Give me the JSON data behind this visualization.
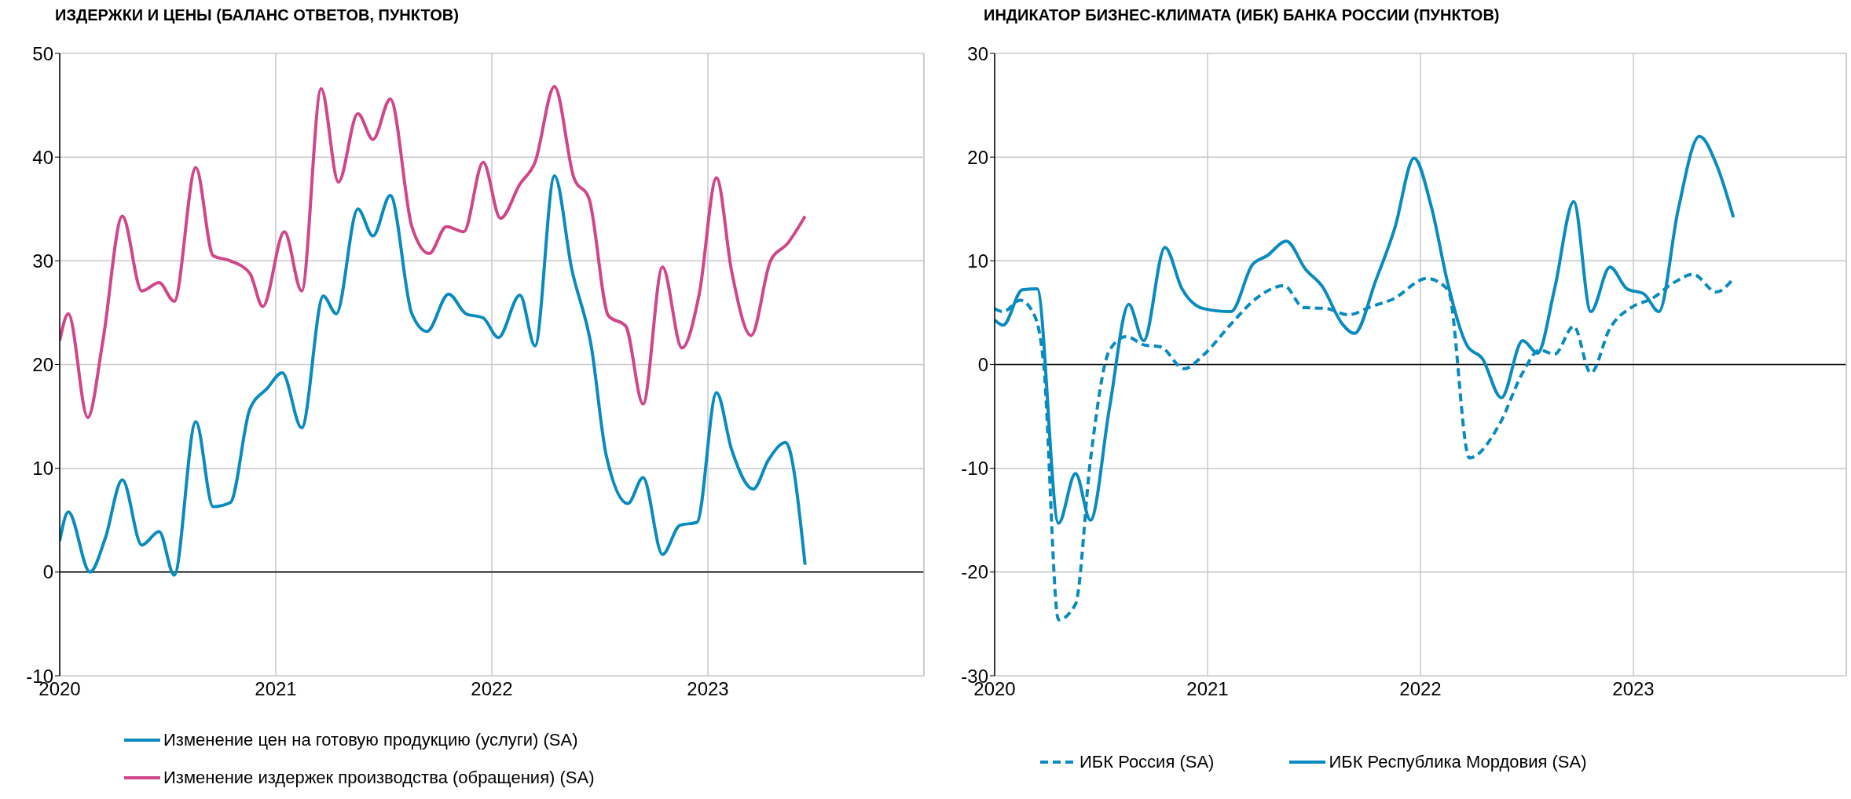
{
  "chart_data": [
    {
      "type": "line",
      "title": "ИЗДЕРЖКИ И ЦЕНЫ (БАЛАНС ОТВЕТОВ, ПУНКТОВ)",
      "xlim": [
        2020,
        2024
      ],
      "xticks": [
        2020,
        2021,
        2022,
        2023
      ],
      "ylim": [
        -10,
        50
      ],
      "yticks": [
        -10,
        0,
        10,
        20,
        30,
        40,
        50
      ],
      "grid": true,
      "legend": "bottom",
      "marker": "none",
      "series": [
        {
          "name": "Изменение цен на готовую продукцию (услуги) (SA)",
          "color": "#0a8bbf",
          "line_style": "solid",
          "x": [
            2020,
            2020.04,
            2020.14,
            2020.21,
            2020.29,
            2020.38,
            2020.46,
            2020.53,
            2020.63,
            2020.71,
            2020.79,
            2020.88,
            2020.96,
            2021.03,
            2021.12,
            2021.22,
            2021.28,
            2021.38,
            2021.45,
            2021.53,
            2021.63,
            2021.7,
            2021.8,
            2021.88,
            2021.96,
            2022.03,
            2022.13,
            2022.2,
            2022.29,
            2022.37,
            2022.46,
            2022.53,
            2022.63,
            2022.7,
            2022.79,
            2022.87,
            2022.95,
            2023.04,
            2023.11,
            2023.21,
            2023.28,
            2023.36,
            2023.45
          ],
          "values": [
            3.0,
            5.8,
            0.0,
            3.2,
            8.9,
            2.6,
            3.9,
            -0.3,
            14.5,
            6.3,
            6.7,
            15.7,
            17.7,
            19.2,
            13.9,
            26.6,
            24.9,
            35.0,
            32.4,
            36.3,
            24.9,
            23.2,
            26.8,
            24.9,
            24.5,
            22.6,
            26.7,
            21.8,
            38.2,
            29.2,
            21.8,
            11.2,
            6.6,
            9.1,
            1.7,
            4.5,
            4.8,
            17.3,
            11.8,
            8.0,
            10.8,
            12.5,
            0.7
          ]
        },
        {
          "name": "Изменение издержек производства (обращения) (SA)",
          "color": "#d0468a",
          "line_style": "solid",
          "x": [
            2020,
            2020.04,
            2020.13,
            2020.2,
            2020.29,
            2020.38,
            2020.46,
            2020.53,
            2020.63,
            2020.71,
            2020.79,
            2020.88,
            2020.94,
            2021.04,
            2021.12,
            2021.21,
            2021.29,
            2021.38,
            2021.45,
            2021.53,
            2021.63,
            2021.71,
            2021.79,
            2021.87,
            2021.96,
            2022.04,
            2022.13,
            2022.2,
            2022.29,
            2022.38,
            2022.45,
            2022.54,
            2022.62,
            2022.7,
            2022.79,
            2022.88,
            2022.96,
            2023.04,
            2023.11,
            2023.2,
            2023.29,
            2023.37,
            2023.45
          ],
          "values": [
            22.3,
            24.9,
            14.9,
            22.3,
            34.3,
            27.1,
            27.9,
            26.1,
            39.0,
            30.5,
            30.0,
            28.8,
            25.6,
            32.8,
            27.1,
            46.6,
            37.6,
            44.2,
            41.7,
            45.6,
            33.3,
            30.7,
            33.3,
            32.8,
            39.5,
            34.1,
            37.4,
            39.5,
            46.8,
            38.0,
            36.0,
            24.7,
            23.7,
            16.2,
            29.4,
            21.6,
            26.8,
            38.0,
            29.0,
            22.8,
            30.0,
            31.7,
            34.3
          ]
        }
      ]
    },
    {
      "type": "line",
      "title": "ИНДИКАТОР БИЗНЕС-КЛИМАТА (ИБК) БАНКА РОССИИ (ПУНКТОВ)",
      "xlim": [
        2020,
        2024
      ],
      "xticks": [
        2020,
        2021,
        2022,
        2023
      ],
      "ylim": [
        -30,
        30
      ],
      "yticks": [
        -30,
        -20,
        -10,
        0,
        10,
        20,
        30
      ],
      "grid": true,
      "legend": "bottom",
      "marker": "none",
      "series": [
        {
          "name": "ИБК Россия (SA)",
          "color": "#0a8bbf",
          "line_style": "dashed",
          "x": [
            2020,
            2020.04,
            2020.12,
            2020.19,
            2020.23,
            2020.3,
            2020.38,
            2020.45,
            2020.54,
            2020.62,
            2020.7,
            2020.78,
            2020.89,
            2020.98,
            2021.11,
            2021.23,
            2021.36,
            2021.45,
            2021.56,
            2021.66,
            2021.77,
            2021.87,
            2022.03,
            2022.13,
            2022.23,
            2022.37,
            2022.48,
            2022.56,
            2022.63,
            2022.72,
            2022.8,
            2022.89,
            2022.99,
            2023.09,
            2023.19,
            2023.28,
            2023.39,
            2023.47
          ],
          "values": [
            5.4,
            5.1,
            6.2,
            4.6,
            0.1,
            -24.6,
            -23.1,
            -9.2,
            1.4,
            2.7,
            1.9,
            1.7,
            -0.4,
            0.9,
            3.9,
            6.4,
            7.6,
            5.5,
            5.4,
            4.8,
            5.6,
            6.3,
            8.3,
            7.2,
            -9.0,
            -5.8,
            -0.8,
            1.4,
            1.0,
            3.7,
            -0.8,
            3.5,
            5.5,
            6.4,
            7.9,
            8.7,
            7.0,
            8.3
          ]
        },
        {
          "name": "ИБК Республика Мордовия (SA)",
          "color": "#0a8bbf",
          "line_style": "solid",
          "x": [
            2020,
            2020.04,
            2020.13,
            2020.2,
            2020.3,
            2020.38,
            2020.45,
            2020.54,
            2020.63,
            2020.7,
            2020.8,
            2020.88,
            2020.98,
            2021.11,
            2021.21,
            2021.28,
            2021.37,
            2021.46,
            2021.54,
            2021.63,
            2021.69,
            2021.79,
            2021.88,
            2021.97,
            2022.05,
            2022.13,
            2022.22,
            2022.29,
            2022.38,
            2022.48,
            2022.55,
            2022.63,
            2022.72,
            2022.8,
            2022.89,
            2022.97,
            2023.05,
            2023.12,
            2023.21,
            2023.31,
            2023.39,
            2023.47
          ],
          "values": [
            4.3,
            3.8,
            7.2,
            7.3,
            -15.3,
            -10.5,
            -15.0,
            -4.1,
            5.8,
            2.3,
            11.3,
            7.3,
            5.4,
            5.1,
            9.6,
            10.5,
            11.9,
            9.2,
            7.5,
            4.0,
            3.0,
            8.1,
            13.2,
            19.9,
            15.3,
            7.7,
            1.8,
            0.6,
            -3.2,
            2.3,
            1.1,
            7.3,
            15.7,
            5.1,
            9.4,
            7.3,
            6.8,
            5.1,
            14.9,
            22.0,
            19.3,
            14.2
          ]
        }
      ]
    }
  ]
}
